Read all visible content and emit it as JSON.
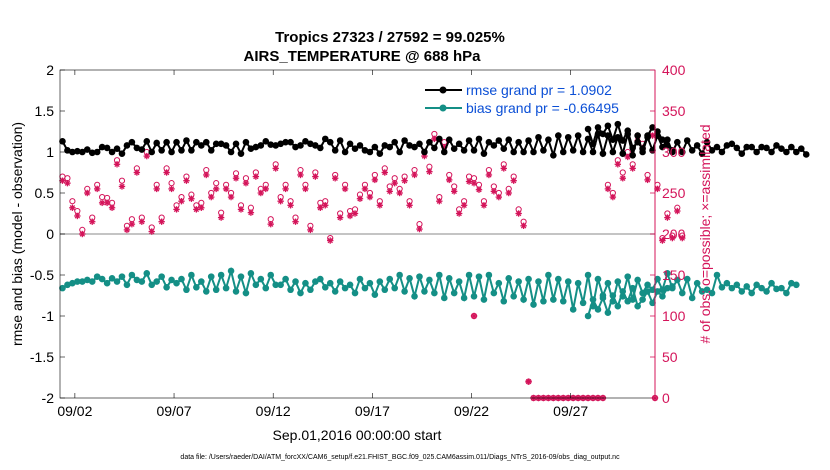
{
  "chart_data": {
    "type": "line",
    "title_line1": "Tropics 27323 / 27592 = 99.025%",
    "title_line2": "AIRS_TEMPERATURE @ 688 hPa",
    "xlabel": "Sep.01,2016 00:00:00 start",
    "ylabel_left": "rmse and bias (model - observation)",
    "ylabel_right": "# of obs: o=possible; ×=assimilated",
    "footer": "data file: /Users/raeder/DAI/ATM_forcXX/CAM6_setup/f.e21.FHIST_BGC.f09_025.CAM6assim.011/Diags_NTrS_2016-09/obs_diag_output.nc",
    "xlim": [
      0.5,
      30.5
    ],
    "ylim_left": [
      -2,
      2
    ],
    "ylim_right": [
      0,
      400
    ],
    "x_ticks": [
      1.25,
      6.25,
      11.25,
      16.25,
      21.25,
      26.25
    ],
    "x_tick_labels": [
      "09/02",
      "09/07",
      "09/12",
      "09/17",
      "09/22",
      "09/27"
    ],
    "y_left_ticks": [
      -2,
      -1.5,
      -1,
      -0.5,
      0,
      0.5,
      1,
      1.5,
      2
    ],
    "y_left_tick_labels": [
      "-2",
      "-1.5",
      "-1",
      "-0.5",
      "0",
      "0.5",
      "1",
      "1.5",
      "2"
    ],
    "y_right_ticks": [
      0,
      50,
      100,
      150,
      200,
      250,
      300,
      350,
      400
    ],
    "y_right_tick_labels": [
      "0",
      "50",
      "100",
      "150",
      "200",
      "250",
      "300",
      "350",
      "400"
    ],
    "legend_location": "top-right",
    "colors": {
      "rmse": "#000000",
      "bias": "#148f86",
      "obs": "#d4145a",
      "zero_line": "#b0b0b0",
      "right_axis": "#d4145a"
    },
    "series": [
      {
        "name": "rmse grand pr = 1.0902",
        "segments": [
          {
            "x_start": 0.625,
            "x_step": 0.25,
            "values": [
              1.13,
              1.02,
              1.0,
              1.01,
              1.0,
              1.03,
              0.99,
              1.0,
              1.06,
              1.05,
              1.0,
              1.04,
              0.98,
              1.08,
              1.12,
              1.05,
              1.03,
              1.13,
              1.0,
              1.11,
              1.02,
              1.12,
              1.0,
              1.12,
              1.02,
              1.14,
              1.02,
              1.12,
              1.08,
              1.12,
              1.02,
              1.1,
              1.1,
              1.08,
              1.0,
              1.1,
              0.98,
              1.12,
              1.04,
              1.06,
              1.08,
              1.13,
              1.09,
              1.08,
              1.1,
              1.12,
              1.12,
              1.06,
              1.08,
              1.13,
              1.1,
              1.08,
              1.05,
              1.16,
              1.12,
              1.02,
              1.14,
              1.0,
              1.1,
              1.04,
              1.08,
              1.02,
              1.0,
              1.06,
              0.98,
              1.08,
              1.06,
              1.12,
              1.0,
              1.14,
              1.08,
              1.06,
              1.1,
              1.0,
              1.12,
              1.05,
              1.16,
              1.0,
              1.15,
              1.04,
              1.1,
              1.02,
              1.14,
              1.02,
              1.16,
              0.98,
              1.12,
              1.08,
              1.14,
              1.04,
              1.15,
              1.0,
              1.12,
              1.0,
              1.14,
              1.0,
              1.18,
              1.02,
              1.15,
              0.96,
              1.2,
              1.0,
              1.18,
              1.02,
              1.2,
              1.0,
              1.16,
              1.0,
              1.22,
              0.98,
              1.2,
              1.0,
              1.18,
              0.98,
              1.22,
              0.96,
              1.2,
              1.0,
              1.18,
              1.02,
              1.2,
              1.06,
              1.15,
              1.0,
              1.12,
              1.0,
              1.14,
              1.02,
              1.08,
              0.98,
              1.12,
              1.02,
              1.06,
              1.0,
              1.08,
              1.1,
              1.05,
              0.98,
              1.06,
              1.06,
              1.0,
              1.06,
              1.05,
              1.0,
              1.08,
              1.04,
              1.0,
              1.06,
              1.0,
              1.04,
              0.97
            ]
          },
          {
            "x_start": 27.125,
            "x_step": 0.25,
            "values": [
              1.28,
              1.1,
              1.3,
              1.22,
              1.32,
              1.15,
              1.34,
              1.14,
              1.26,
              1.05,
              1.12,
              1.04,
              1.2,
              1.3,
              1.25,
              1.15,
              1.08,
              1.02
            ]
          }
        ]
      },
      {
        "name": "bias grand pr = -0.66495",
        "segments": [
          {
            "x_start": 0.625,
            "x_step": 0.25,
            "values": [
              -0.66,
              -0.62,
              -0.6,
              -0.58,
              -0.58,
              -0.56,
              -0.58,
              -0.52,
              -0.55,
              -0.6,
              -0.54,
              -0.58,
              -0.52,
              -0.62,
              -0.5,
              -0.56,
              -0.58,
              -0.48,
              -0.62,
              -0.58,
              -0.52,
              -0.65,
              -0.56,
              -0.6,
              -0.55,
              -0.68,
              -0.5,
              -0.65,
              -0.58,
              -0.7,
              -0.52,
              -0.68,
              -0.5,
              -0.66,
              -0.45,
              -0.7,
              -0.52,
              -0.72,
              -0.48,
              -0.62,
              -0.55,
              -0.66,
              -0.5,
              -0.62,
              -0.62,
              -0.55,
              -0.68,
              -0.58,
              -0.72,
              -0.6,
              -0.68,
              -0.58,
              -0.55,
              -0.65,
              -0.6,
              -0.7,
              -0.58,
              -0.66,
              -0.62,
              -0.72,
              -0.55,
              -0.66,
              -0.6,
              -0.74,
              -0.58,
              -0.68,
              -0.55,
              -0.66,
              -0.5,
              -0.7,
              -0.54,
              -0.76,
              -0.52,
              -0.7,
              -0.56,
              -0.72,
              -0.5,
              -0.78,
              -0.54,
              -0.72,
              -0.58,
              -0.78,
              -0.5,
              -0.76,
              -0.52,
              -0.8,
              -0.5,
              -0.72,
              -0.6,
              -0.82,
              -0.54,
              -0.76,
              -0.58,
              -0.8,
              -0.55,
              -0.86,
              -0.58,
              -0.82,
              -0.5,
              -0.8,
              -0.55,
              -0.82,
              -0.58,
              -0.92,
              -0.6,
              -0.84,
              -0.5,
              -0.88,
              -0.55,
              -0.75,
              -0.6,
              -0.82,
              -0.58,
              -0.76,
              -0.52,
              -0.8,
              -0.56,
              -0.72,
              -0.62,
              -0.68,
              -0.55,
              -0.68,
              -0.48,
              -0.66,
              -0.56,
              -0.72,
              -0.55,
              -0.78,
              -0.6,
              -0.7,
              -0.68,
              -0.72,
              -0.5,
              -0.65,
              -0.6,
              -0.66,
              -0.62,
              -0.7,
              -0.64,
              -0.72,
              -0.62,
              -0.66,
              -0.7,
              -0.6,
              -0.67,
              -0.66,
              -0.72,
              -0.6,
              -0.62
            ]
          },
          {
            "x_start": 27.125,
            "x_step": 0.25,
            "values": [
              -1.0,
              -0.8,
              -0.92,
              -0.78,
              -0.96,
              -0.75,
              -0.88,
              -0.7,
              -0.82,
              -0.66,
              -0.88,
              -0.8,
              -0.7,
              -0.84,
              -0.7,
              -0.76,
              -0.66,
              -0.64
            ]
          }
        ]
      }
    ],
    "obs_counts": {
      "possible": [
        270,
        268,
        240,
        228,
        205,
        255,
        220,
        260,
        245,
        244,
        238,
        290,
        265,
        210,
        218,
        280,
        220,
        300,
        208,
        260,
        220,
        280,
        262,
        235,
        245,
        270,
        248,
        235,
        238,
        278,
        250,
        262,
        226,
        260,
        250,
        274,
        235,
        268,
        232,
        275,
        255,
        260,
        218,
        285,
        245,
        260,
        240,
        220,
        278,
        260,
        210,
        275,
        238,
        240,
        195,
        272,
        225,
        260,
        228,
        230,
        248,
        260,
        250,
        272,
        240,
        280,
        258,
        268,
        255,
        270,
        240,
        278,
        212,
        300,
        282,
        322,
        245,
        312,
        272,
        258,
        230,
        240,
        270,
        268,
        260,
        240,
        278,
        258,
        250,
        285,
        255,
        270,
        230,
        215,
        20,
        0,
        0,
        0,
        0,
        0,
        0,
        0,
        0,
        0,
        0,
        0,
        0,
        0,
        0,
        0,
        260,
        250,
        290,
        275,
        300,
        285,
        320,
        310,
        272,
        325,
        260,
        195,
        225,
        198,
        232,
        198
      ],
      "assimilated": [
        265,
        262,
        232,
        222,
        200,
        250,
        215,
        255,
        238,
        238,
        232,
        285,
        258,
        205,
        212,
        275,
        215,
        295,
        203,
        255,
        215,
        275,
        255,
        230,
        240,
        265,
        243,
        230,
        232,
        272,
        245,
        255,
        220,
        255,
        245,
        268,
        230,
        262,
        226,
        270,
        250,
        255,
        212,
        280,
        240,
        255,
        235,
        215,
        272,
        255,
        205,
        270,
        232,
        235,
        192,
        268,
        220,
        255,
        222,
        225,
        243,
        255,
        245,
        266,
        235,
        275,
        252,
        262,
        250,
        265,
        235,
        272,
        206,
        295,
        276,
        316,
        240,
        306,
        266,
        252,
        225,
        235,
        264,
        262,
        254,
        235,
        272,
        252,
        245,
        280,
        250,
        265,
        225,
        210,
        20,
        0,
        0,
        0,
        0,
        0,
        0,
        0,
        0,
        0,
        0,
        0,
        0,
        0,
        0,
        0,
        255,
        245,
        285,
        268,
        294,
        280,
        314,
        305,
        266,
        320,
        255,
        192,
        220,
        195,
        228,
        195
      ],
      "x_start": 0.625,
      "x_step": 0.25,
      "extra_point": {
        "x": 30.5,
        "value": 0
      },
      "isolated_points": [
        {
          "x": 21.375,
          "value": 100
        }
      ]
    }
  }
}
